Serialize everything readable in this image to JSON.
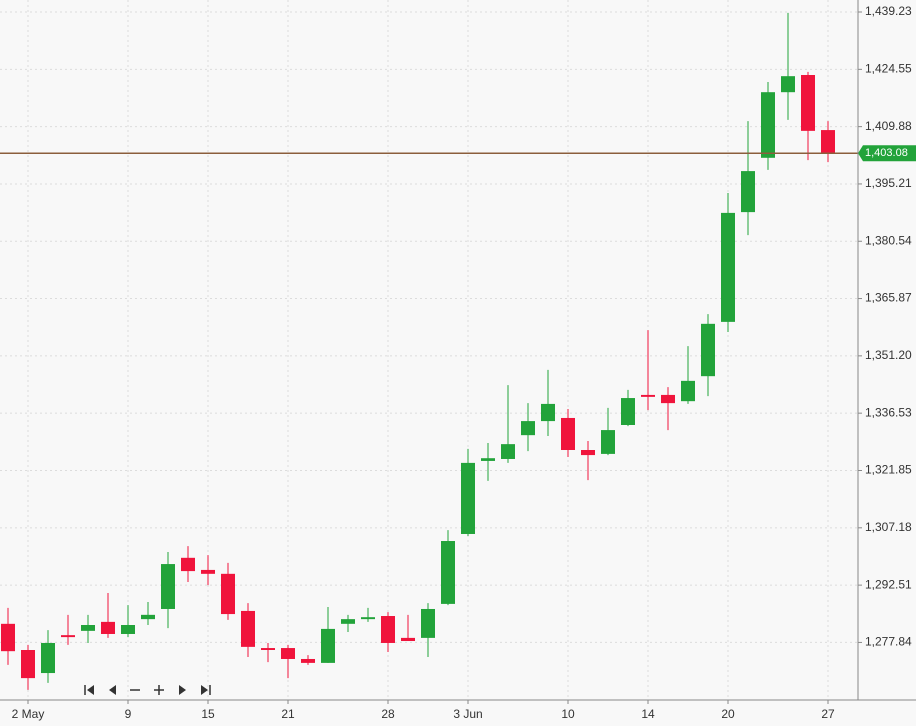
{
  "chart_data": {
    "type": "candlestick",
    "categories": [
      null,
      "2 May",
      null,
      null,
      null,
      null,
      "9",
      null,
      null,
      null,
      "15",
      null,
      null,
      null,
      "21",
      null,
      null,
      null,
      null,
      "28",
      null,
      null,
      null,
      "3 Jun",
      null,
      null,
      null,
      null,
      "10",
      null,
      null,
      null,
      "14",
      null,
      null,
      null,
      "20",
      null,
      null,
      null,
      null,
      "27"
    ],
    "open": [
      1282.6,
      1275.9,
      1270.0,
      1279.7,
      1280.8,
      1283.1,
      1280.0,
      1283.8,
      1286.4,
      1299.5,
      1296.4,
      1295.4,
      1285.9,
      1276.4,
      1276.4,
      1273.6,
      1272.6,
      1282.6,
      1283.8,
      1284.6,
      1279.0,
      1279.0,
      1287.7,
      1305.6,
      1324.3,
      1324.8,
      1330.9,
      1334.5,
      1335.3,
      1327.1,
      1326.1,
      1333.5,
      1341.2,
      1341.2,
      1339.6,
      1346.0,
      1359.9,
      1388.0,
      1401.9,
      1418.7,
      1423.1,
      1409.0
    ],
    "high": [
      1286.7,
      1277.2,
      1281.0,
      1284.9,
      1284.9,
      1290.5,
      1287.4,
      1288.2,
      1301.0,
      1302.5,
      1300.2,
      1298.2,
      1287.9,
      1277.7,
      1277.2,
      1274.6,
      1286.9,
      1284.9,
      1286.7,
      1285.6,
      1284.9,
      1287.9,
      1306.6,
      1327.4,
      1328.9,
      1343.7,
      1339.1,
      1347.6,
      1337.6,
      1329.4,
      1337.9,
      1342.5,
      1357.8,
      1343.2,
      1353.7,
      1361.9,
      1392.9,
      1411.3,
      1421.3,
      1439.0,
      1423.9,
      1411.3
    ],
    "low": [
      1272.1,
      1265.7,
      1267.5,
      1277.2,
      1277.7,
      1279.0,
      1279.2,
      1282.3,
      1281.5,
      1293.3,
      1292.5,
      1283.6,
      1274.1,
      1272.8,
      1268.7,
      1272.1,
      1272.6,
      1280.5,
      1283.1,
      1275.4,
      1278.2,
      1274.1,
      1287.4,
      1305.1,
      1319.2,
      1323.8,
      1326.8,
      1330.7,
      1325.3,
      1319.4,
      1325.8,
      1333.2,
      1337.3,
      1332.2,
      1338.9,
      1340.9,
      1357.3,
      1382.1,
      1398.8,
      1411.6,
      1401.3,
      1400.8
    ],
    "close": [
      1275.6,
      1268.7,
      1277.7,
      1279.2,
      1282.3,
      1280.0,
      1282.3,
      1284.9,
      1297.9,
      1296.1,
      1295.4,
      1285.1,
      1276.7,
      1275.9,
      1273.6,
      1272.6,
      1281.3,
      1283.8,
      1284.3,
      1277.7,
      1278.2,
      1286.4,
      1303.8,
      1323.8,
      1325.0,
      1328.6,
      1334.5,
      1338.9,
      1327.1,
      1325.8,
      1332.2,
      1340.4,
      1340.7,
      1339.1,
      1344.8,
      1359.4,
      1387.8,
      1398.5,
      1418.7,
      1422.8,
      1408.8,
      1403.08
    ],
    "up_color": "#22a33a",
    "down_color": "#f0143c",
    "ylim": [
      1263.1,
      1442.3
    ],
    "yticks": [
      {
        "value": 1277.84,
        "label": "1,277.84"
      },
      {
        "value": 1292.51,
        "label": "1,292.51"
      },
      {
        "value": 1307.18,
        "label": "1,307.18"
      },
      {
        "value": 1321.85,
        "label": "1,321.85"
      },
      {
        "value": 1336.53,
        "label": "1,336.53"
      },
      {
        "value": 1351.2,
        "label": "1,351.20"
      },
      {
        "value": 1365.87,
        "label": "1,365.87"
      },
      {
        "value": 1380.54,
        "label": "1,380.54"
      },
      {
        "value": 1395.21,
        "label": "1,395.21"
      },
      {
        "value": 1409.88,
        "label": "1,409.88"
      },
      {
        "value": 1424.55,
        "label": "1,424.55"
      },
      {
        "value": 1439.23,
        "label": "1,439.23"
      }
    ],
    "last_price": {
      "value": 1403.08,
      "label": "1,403.08"
    },
    "last_price_color": "#8b5e3c",
    "grid": true
  }
}
